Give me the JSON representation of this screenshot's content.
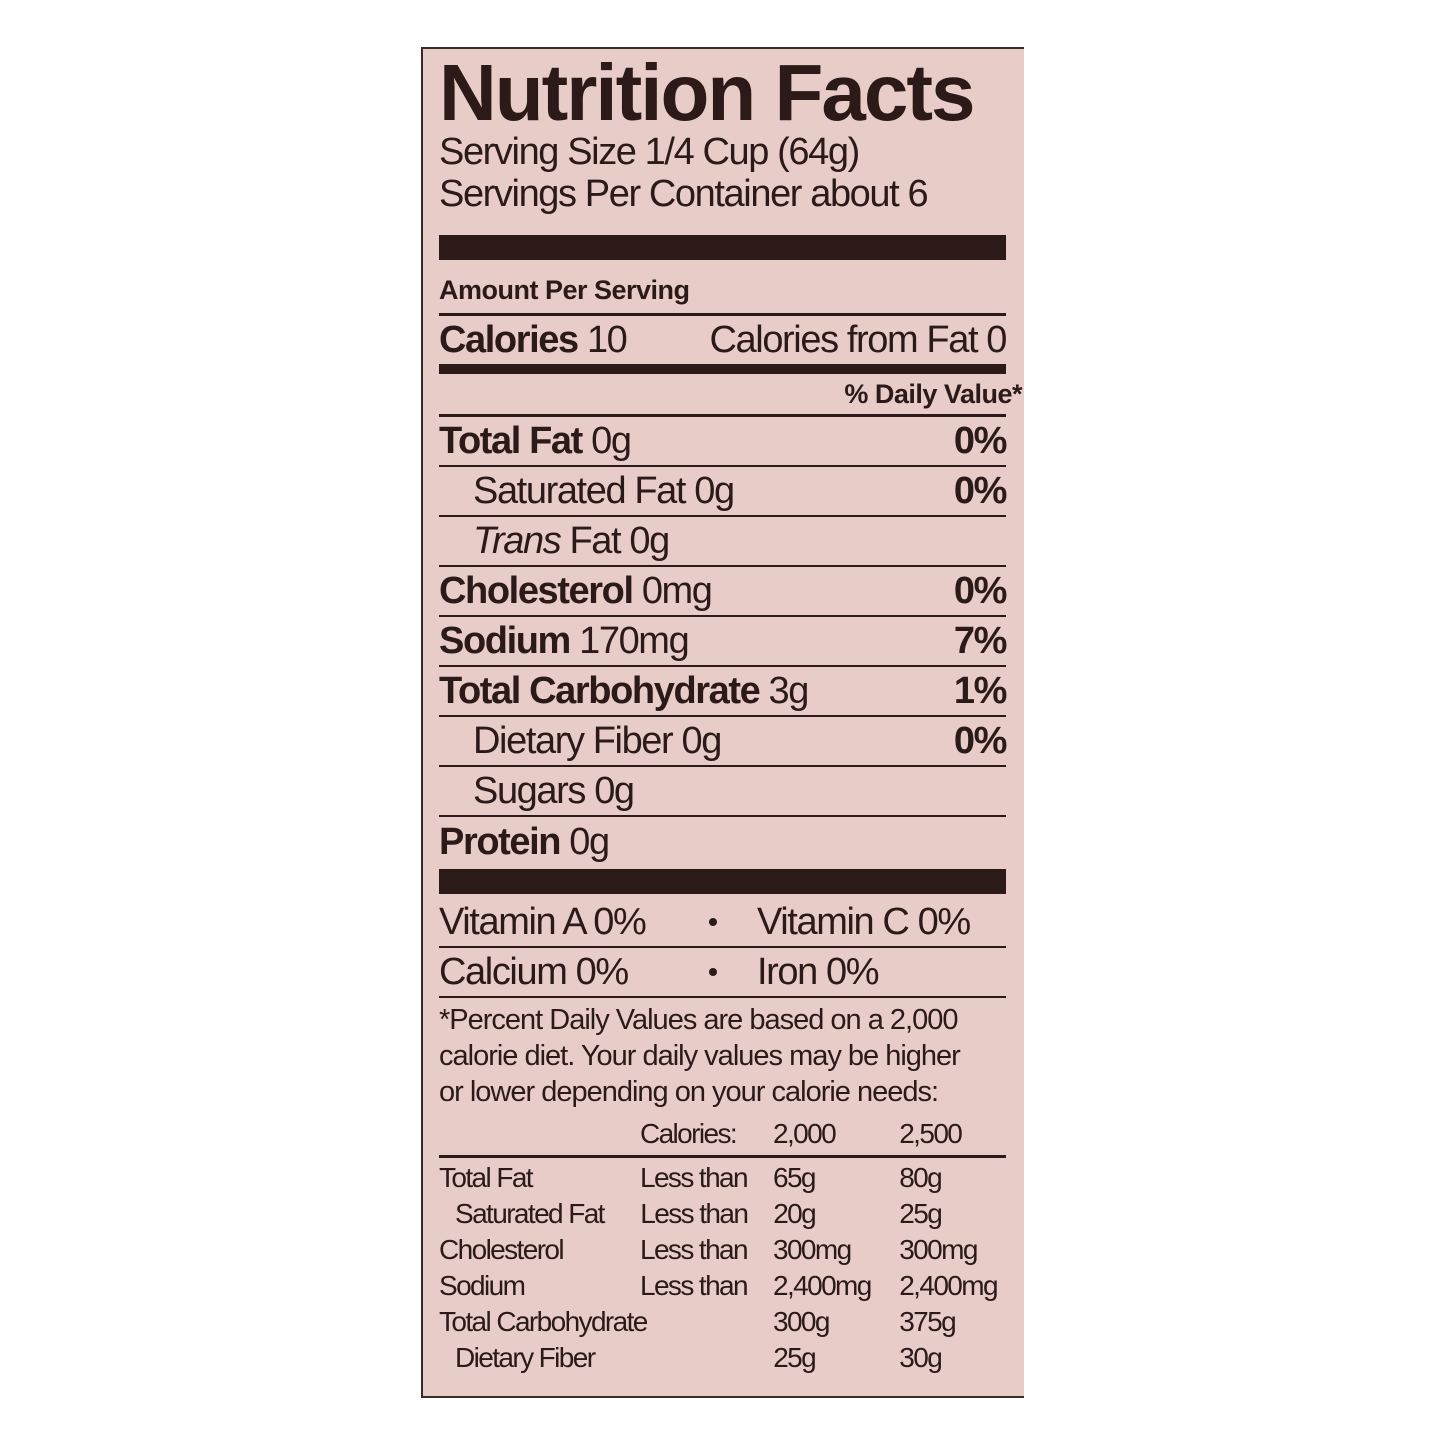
{
  "title": "Nutrition Facts",
  "serving_size": "Serving Size 1/4 Cup (64g)",
  "servings_per_container": "Servings Per Container about 6",
  "amount_per_serving": "Amount Per Serving",
  "calories": {
    "label": "Calories",
    "value": "10",
    "from_fat": "Calories from Fat 0"
  },
  "daily_value_header": "% Daily Value*",
  "nutrients": [
    {
      "label": "Total Fat",
      "amount": "0g",
      "dv": "0%",
      "bold": true,
      "indent": false
    },
    {
      "label": "Saturated Fat",
      "amount": "0g",
      "dv": "0%",
      "bold": false,
      "indent": true
    },
    {
      "label": "Trans",
      "label_rest": "Fat",
      "amount": "0g",
      "dv": "",
      "bold": false,
      "indent": true
    },
    {
      "label": "Cholesterol",
      "amount": "0mg",
      "dv": "0%",
      "bold": true,
      "indent": false
    },
    {
      "label": "Sodium",
      "amount": "170mg",
      "dv": "7%",
      "bold": true,
      "indent": false
    },
    {
      "label": "Total Carbohydrate",
      "amount": "3g",
      "dv": "1%",
      "bold": true,
      "indent": false
    },
    {
      "label": "Dietary Fiber",
      "amount": "0g",
      "dv": "0%",
      "bold": false,
      "indent": true
    },
    {
      "label": "Sugars",
      "amount": "0g",
      "dv": "",
      "bold": false,
      "indent": true
    },
    {
      "label": "Protein",
      "amount": "0g",
      "dv": "",
      "bold": true,
      "indent": false
    }
  ],
  "vitamins": [
    [
      "Vitamin A 0%",
      "Vitamin C 0%"
    ],
    [
      "Calcium 0%",
      "Iron 0%"
    ]
  ],
  "footnote": [
    "*Percent Daily Values are based on a 2,000",
    "calorie diet. Your daily values may be higher",
    "or lower depending on your calorie needs:"
  ],
  "reference_table": {
    "header": [
      "",
      "Calories:",
      "2,000",
      "2,500"
    ],
    "rows": [
      [
        "Total Fat",
        "Less than",
        "65g",
        "80g"
      ],
      [
        "Saturated Fat",
        "Less than",
        "20g",
        "25g"
      ],
      [
        "Cholesterol",
        "Less than",
        "300mg",
        "300mg"
      ],
      [
        "Sodium",
        "Less than",
        "2,400mg",
        "2,400mg"
      ],
      [
        "Total Carbohydrate",
        "",
        "300g",
        "375g"
      ],
      [
        "Dietary Fiber",
        "",
        "25g",
        "30g"
      ]
    ]
  },
  "colors": {
    "background": "#e7ccc8",
    "ink": "#2b1a17"
  }
}
